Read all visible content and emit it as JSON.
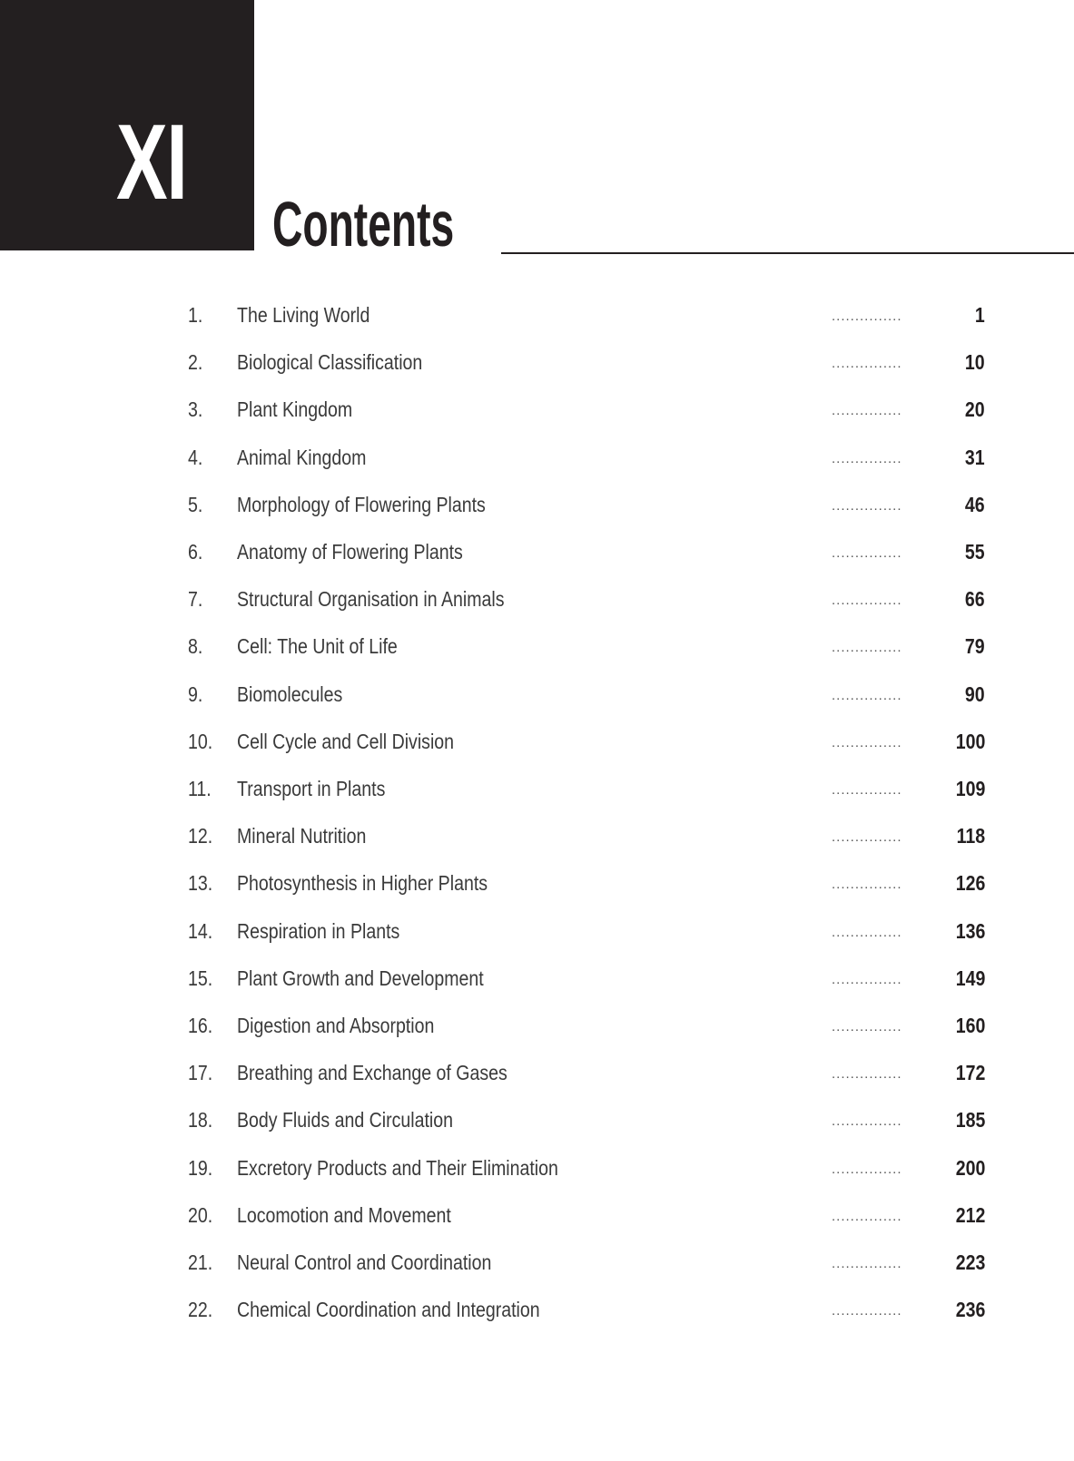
{
  "header": {
    "volume": "XI",
    "title": "Contents"
  },
  "entries": [
    {
      "num": "1.",
      "title": "The Living World",
      "page": "1"
    },
    {
      "num": "2.",
      "title": "Biological Classification",
      "page": "10"
    },
    {
      "num": "3.",
      "title": "Plant Kingdom",
      "page": "20"
    },
    {
      "num": "4.",
      "title": "Animal Kingdom",
      "page": "31"
    },
    {
      "num": "5.",
      "title": "Morphology of Flowering Plants",
      "page": "46"
    },
    {
      "num": "6.",
      "title": "Anatomy of Flowering Plants",
      "page": "55"
    },
    {
      "num": "7.",
      "title": "Structural Organisation in Animals",
      "page": "66"
    },
    {
      "num": "8.",
      "title": "Cell: The Unit of Life",
      "page": "79"
    },
    {
      "num": "9.",
      "title": "Biomolecules",
      "page": "90"
    },
    {
      "num": "10.",
      "title": "Cell Cycle and Cell Division",
      "page": "100"
    },
    {
      "num": "11.",
      "title": "Transport in Plants",
      "page": "109"
    },
    {
      "num": "12.",
      "title": "Mineral Nutrition",
      "page": "118"
    },
    {
      "num": "13.",
      "title": "Photosynthesis in Higher Plants",
      "page": "126"
    },
    {
      "num": "14.",
      "title": "Respiration in Plants",
      "page": "136"
    },
    {
      "num": "15.",
      "title": "Plant Growth and Development",
      "page": "149"
    },
    {
      "num": "16.",
      "title": "Digestion and Absorption",
      "page": "160"
    },
    {
      "num": "17.",
      "title": "Breathing and Exchange of Gases",
      "page": "172"
    },
    {
      "num": "18.",
      "title": "Body Fluids and Circulation",
      "page": "185"
    },
    {
      "num": "19.",
      "title": "Excretory Products and Their Elimination",
      "page": "200"
    },
    {
      "num": "20.",
      "title": "Locomotion and Movement",
      "page": "212"
    },
    {
      "num": "21.",
      "title": "Neural Control and Coordination",
      "page": "223"
    },
    {
      "num": "22.",
      "title": "Chemical Coordination and Integration",
      "page": "236"
    }
  ],
  "leader": "..............."
}
